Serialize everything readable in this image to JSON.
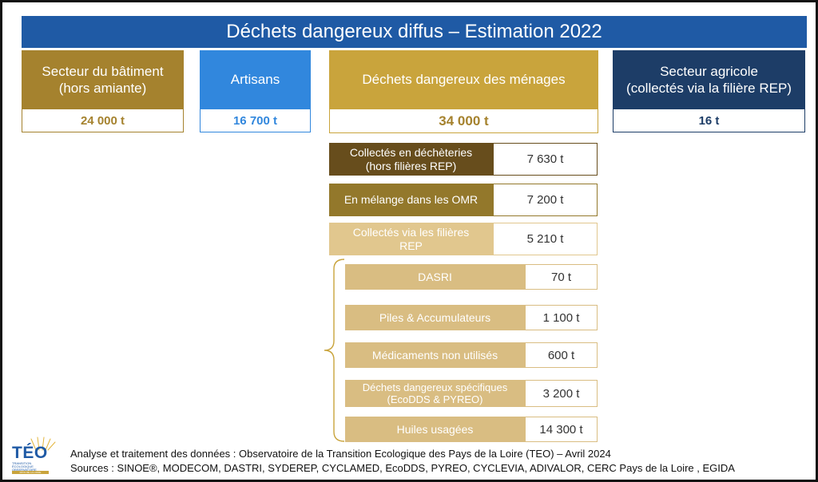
{
  "title": "Déchets dangereux diffus – Estimation 2022",
  "categories": {
    "batiment": {
      "label": "Secteur du bâtiment\n(hors amiante)",
      "value": "24 000 t"
    },
    "artisans": {
      "label": "Artisans",
      "value": "16 700 t"
    },
    "menages": {
      "label": "Déchets dangereux des ménages",
      "value": "34 000 t"
    },
    "agricole": {
      "label": "Secteur agricole\n(collectés via la filière REP)",
      "value": "16 t"
    }
  },
  "menages_breakdown": [
    {
      "label": "Collectés en déchèteries\n(hors filières REP)",
      "value": "7 630 t"
    },
    {
      "label": "En mélange dans les OMR",
      "value": "7 200 t"
    },
    {
      "label": "Collectés via les filières\nREP",
      "value": "5 210 t"
    }
  ],
  "rep_breakdown": [
    {
      "label": "DASRI",
      "value": "70 t"
    },
    {
      "label": "Piles & Accumulateurs",
      "value": "1 100 t"
    },
    {
      "label": "Médicaments non utilisés",
      "value": "600 t"
    },
    {
      "label": "Déchets dangereux spécifiques\n(EcoDDS & PYREO)",
      "value": "3 200 t"
    },
    {
      "label": "Huiles usagées",
      "value": "14 300 t"
    }
  ],
  "footer": {
    "analysis": "Analyse et traitement des données : Observatoire de la Transition Ecologique des Pays de la Loire (TEO) – Avril 2024",
    "sources": "Sources : SINOE®, MODECOM, DASTRI, SYDEREP, CYCLAMED, EcoDDS, PYREO, CYCLEVIA, ADIVALOR, CERC Pays de la Loire , EGIDA"
  },
  "logo": {
    "text": "TÉO",
    "subtitle": "TRANSITION ÉCOLOGIQUE OBSERVATOIRE",
    "region": "PAYS DE LA LOIRE"
  }
}
